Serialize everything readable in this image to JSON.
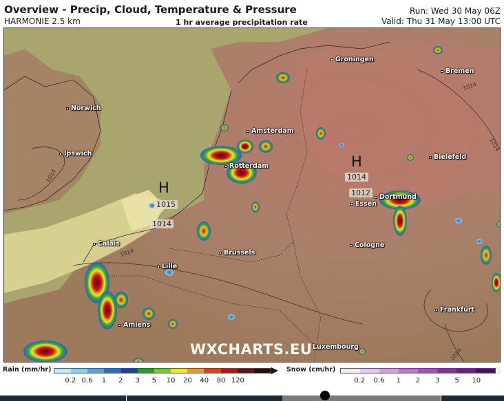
{
  "header": {
    "title": "Overview - Precip, Cloud, Temperature & Pressure",
    "model": "HARMONIE 2.5 km",
    "subtitle": "1 hr average precipitation rate",
    "run": "Run: Wed 30 May 06Z",
    "valid": "Valid: Thu 31 May 13:00 UTC"
  },
  "map": {
    "cities": [
      {
        "name": "Groningen",
        "id": "groningen"
      },
      {
        "name": "Bremen",
        "id": "bremen"
      },
      {
        "name": "Norwich",
        "id": "norwich"
      },
      {
        "name": "Amsterdam",
        "id": "amsterdam"
      },
      {
        "name": "Ipswich",
        "id": "ipswich"
      },
      {
        "name": "Rotterdam",
        "id": "rotterdam"
      },
      {
        "name": "Bielefeld",
        "id": "bielefeld"
      },
      {
        "name": "Dortmund",
        "id": "dortmund"
      },
      {
        "name": "Essen",
        "id": "essen"
      },
      {
        "name": "Calais",
        "id": "calais"
      },
      {
        "name": "Cologne",
        "id": "cologne"
      },
      {
        "name": "Brussels",
        "id": "brussels"
      },
      {
        "name": "Lille",
        "id": "lille"
      },
      {
        "name": "Frankfurt",
        "id": "frankfurt"
      },
      {
        "name": "Amiens",
        "id": "amiens"
      },
      {
        "name": "Luxembourg",
        "id": "luxembourg"
      }
    ],
    "pressure_centers": [
      {
        "symbol": "H",
        "label": "1015"
      },
      {
        "symbol": "H",
        "label": "1014"
      }
    ],
    "isobar_labels": [
      "1014",
      "1012",
      "1014",
      "1014",
      "1014",
      "1014",
      "1014"
    ],
    "watermark": "WXCHARTS.EU"
  },
  "legend": {
    "rain": {
      "title": "Rain (mm/hr)",
      "ticks": [
        "0.2",
        "0.6",
        "1",
        "2",
        "3",
        "5",
        "10",
        "20",
        "40",
        "80",
        "120"
      ],
      "colors": [
        "#bfe8f5",
        "#8ad0ee",
        "#4aa7e3",
        "#1c6fd6",
        "#1b3fb0",
        "#17a51f",
        "#6dcf1f",
        "#f2e81f",
        "#f29a1f",
        "#e3401a",
        "#b8121a",
        "#6e0d14",
        "#2a0a0a"
      ]
    },
    "snow": {
      "title": "Snow (cm/hr)",
      "ticks": [
        "0.2",
        "0.6",
        "1",
        "2",
        "3",
        "5",
        "10"
      ],
      "colors": [
        "#f6e9f8",
        "#e8c4f0",
        "#d69be4",
        "#c06fd6",
        "#a64bc4",
        "#8b2eb0",
        "#6c1a96",
        "#4a0d70"
      ]
    }
  }
}
